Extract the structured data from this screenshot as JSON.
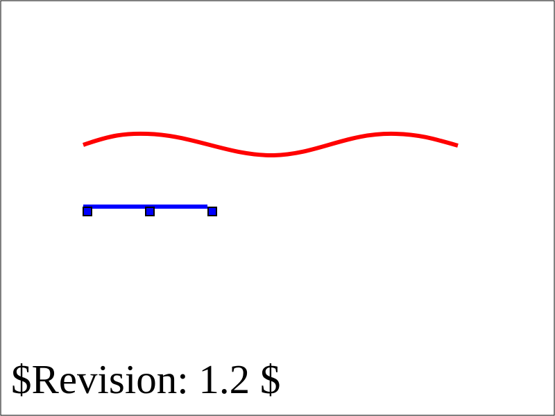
{
  "revision_label": "$Revision: 1.2 $",
  "colors": {
    "frame": "#000000",
    "wave": "#ff0000",
    "handle_line": "#0000ff",
    "handle_fill": "#0000ff",
    "handle_stroke": "#000000",
    "text": "#000000"
  },
  "handles": {
    "count": 3
  }
}
